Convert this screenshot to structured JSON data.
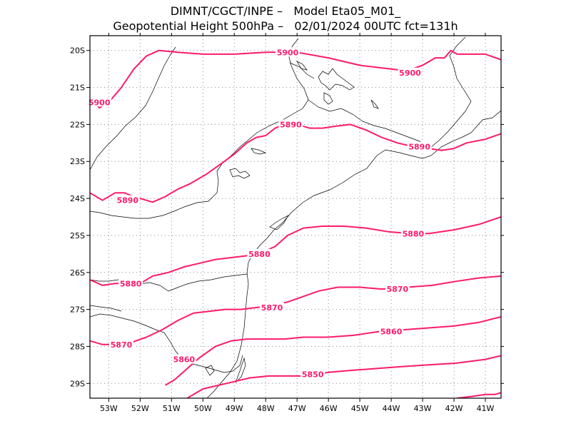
{
  "title_line1": "DIMNT/CGCT/INPE –   Model Eta05_M01_",
  "title_line2": "Geopotential Height 500hPa –   02/01/2024 00UTC fct=131h",
  "colors": {
    "contour": "#ff1a6c",
    "coast": "#000000",
    "grid": "#888888"
  },
  "map": {
    "lon_range": [
      -53.6,
      -40.5
    ],
    "lat_range": [
      -29.4,
      -19.6
    ],
    "lon_ticks": [
      "53W",
      "52W",
      "51W",
      "50W",
      "49W",
      "48W",
      "47W",
      "46W",
      "45W",
      "44W",
      "43W",
      "42W",
      "41W"
    ],
    "lat_ticks": [
      "20S",
      "21S",
      "22S",
      "23S",
      "24S",
      "25S",
      "26S",
      "27S",
      "28S",
      "29S"
    ]
  },
  "contours": [
    {
      "value": "5900",
      "labels": [
        {
          "lon": -47.3,
          "lat": -20.05
        },
        {
          "lon": -43.4,
          "lat": -20.6
        },
        {
          "lon": -53.3,
          "lat": -21.4
        }
      ],
      "points": [
        [
          -53.6,
          -21.3
        ],
        [
          -53.3,
          -21.55
        ],
        [
          -53.0,
          -21.4
        ],
        [
          -52.6,
          -21.0
        ],
        [
          -52.2,
          -20.5
        ],
        [
          -51.8,
          -20.15
        ],
        [
          -51.4,
          -20.0
        ],
        [
          -50.8,
          -20.05
        ],
        [
          -50.0,
          -20.1
        ],
        [
          -49.0,
          -20.1
        ],
        [
          -48.0,
          -20.05
        ],
        [
          -47.0,
          -20.05
        ],
        [
          -46.0,
          -20.2
        ],
        [
          -45.0,
          -20.4
        ],
        [
          -44.0,
          -20.5
        ],
        [
          -43.5,
          -20.55
        ],
        [
          -43.0,
          -20.4
        ],
        [
          -42.6,
          -20.2
        ],
        [
          -42.3,
          -20.2
        ],
        [
          -42.1,
          -20.0
        ],
        [
          -41.9,
          -20.1
        ],
        [
          -41.5,
          -20.1
        ],
        [
          -41.0,
          -20.1
        ],
        [
          -40.5,
          -20.25
        ]
      ]
    },
    {
      "value": "5890",
      "labels": [
        {
          "lon": -52.4,
          "lat": -24.05
        },
        {
          "lon": -47.2,
          "lat": -22.0
        },
        {
          "lon": -43.1,
          "lat": -22.6
        }
      ],
      "points": [
        [
          -53.6,
          -23.85
        ],
        [
          -53.2,
          -24.05
        ],
        [
          -52.8,
          -23.85
        ],
        [
          -52.5,
          -23.85
        ],
        [
          -52.2,
          -23.95
        ],
        [
          -51.6,
          -24.1
        ],
        [
          -51.2,
          -23.95
        ],
        [
          -50.8,
          -23.75
        ],
        [
          -50.4,
          -23.6
        ],
        [
          -49.9,
          -23.35
        ],
        [
          -49.4,
          -23.05
        ],
        [
          -49.0,
          -22.8
        ],
        [
          -48.6,
          -22.5
        ],
        [
          -48.3,
          -22.35
        ],
        [
          -48.0,
          -22.3
        ],
        [
          -47.7,
          -22.1
        ],
        [
          -47.4,
          -22.0
        ],
        [
          -47.0,
          -22.0
        ],
        [
          -46.6,
          -22.1
        ],
        [
          -46.2,
          -22.1
        ],
        [
          -45.8,
          -22.05
        ],
        [
          -45.3,
          -22.0
        ],
        [
          -44.8,
          -22.15
        ],
        [
          -44.3,
          -22.35
        ],
        [
          -43.8,
          -22.5
        ],
        [
          -43.3,
          -22.6
        ],
        [
          -42.8,
          -22.65
        ],
        [
          -42.4,
          -22.7
        ],
        [
          -42.0,
          -22.65
        ],
        [
          -41.6,
          -22.5
        ],
        [
          -41.0,
          -22.4
        ],
        [
          -40.5,
          -22.25
        ]
      ]
    },
    {
      "value": "5880",
      "labels": [
        {
          "lon": -52.3,
          "lat": -26.3
        },
        {
          "lon": -48.2,
          "lat": -25.5
        },
        {
          "lon": -43.3,
          "lat": -24.95
        }
      ],
      "points": [
        [
          -53.6,
          -26.2
        ],
        [
          -53.2,
          -26.35
        ],
        [
          -52.8,
          -26.3
        ],
        [
          -52.4,
          -26.3
        ],
        [
          -52.0,
          -26.3
        ],
        [
          -51.6,
          -26.1
        ],
        [
          -51.1,
          -26.0
        ],
        [
          -50.6,
          -25.85
        ],
        [
          -50.1,
          -25.75
        ],
        [
          -49.6,
          -25.65
        ],
        [
          -49.1,
          -25.6
        ],
        [
          -48.6,
          -25.55
        ],
        [
          -48.1,
          -25.45
        ],
        [
          -47.7,
          -25.3
        ],
        [
          -47.3,
          -25.0
        ],
        [
          -46.8,
          -24.8
        ],
        [
          -46.2,
          -24.75
        ],
        [
          -45.5,
          -24.75
        ],
        [
          -44.8,
          -24.8
        ],
        [
          -44.1,
          -24.9
        ],
        [
          -43.4,
          -24.95
        ],
        [
          -42.8,
          -24.95
        ],
        [
          -42.0,
          -24.85
        ],
        [
          -41.2,
          -24.7
        ],
        [
          -40.5,
          -24.5
        ]
      ]
    },
    {
      "value": "5870",
      "labels": [
        {
          "lon": -52.6,
          "lat": -27.95
        },
        {
          "lon": -47.8,
          "lat": -26.95
        },
        {
          "lon": -43.8,
          "lat": -26.45
        }
      ],
      "points": [
        [
          -53.6,
          -27.85
        ],
        [
          -53.2,
          -27.95
        ],
        [
          -52.8,
          -27.95
        ],
        [
          -52.3,
          -27.9
        ],
        [
          -51.8,
          -27.75
        ],
        [
          -51.3,
          -27.55
        ],
        [
          -50.8,
          -27.3
        ],
        [
          -50.3,
          -27.1
        ],
        [
          -49.8,
          -27.05
        ],
        [
          -49.3,
          -27.0
        ],
        [
          -48.8,
          -27.0
        ],
        [
          -48.3,
          -26.95
        ],
        [
          -47.8,
          -26.9
        ],
        [
          -47.3,
          -26.8
        ],
        [
          -46.8,
          -26.65
        ],
        [
          -46.3,
          -26.5
        ],
        [
          -45.7,
          -26.4
        ],
        [
          -45.0,
          -26.4
        ],
        [
          -44.3,
          -26.45
        ],
        [
          -43.5,
          -26.4
        ],
        [
          -42.7,
          -26.35
        ],
        [
          -42.0,
          -26.25
        ],
        [
          -41.2,
          -26.15
        ],
        [
          -40.5,
          -26.1
        ]
      ]
    },
    {
      "value": "5860",
      "labels": [
        {
          "lon": -50.6,
          "lat": -28.35
        },
        {
          "lon": -44.0,
          "lat": -27.6
        }
      ],
      "points": [
        [
          -51.2,
          -29.05
        ],
        [
          -50.9,
          -28.9
        ],
        [
          -50.5,
          -28.6
        ],
        [
          -50.1,
          -28.3
        ],
        [
          -49.6,
          -28.0
        ],
        [
          -49.1,
          -27.85
        ],
        [
          -48.6,
          -27.8
        ],
        [
          -48.0,
          -27.8
        ],
        [
          -47.4,
          -27.8
        ],
        [
          -46.8,
          -27.75
        ],
        [
          -46.0,
          -27.75
        ],
        [
          -45.2,
          -27.7
        ],
        [
          -44.4,
          -27.6
        ],
        [
          -43.6,
          -27.55
        ],
        [
          -42.8,
          -27.5
        ],
        [
          -42.0,
          -27.45
        ],
        [
          -41.2,
          -27.35
        ],
        [
          -40.5,
          -27.2
        ]
      ]
    },
    {
      "value": "5850",
      "labels": [
        {
          "lon": -46.5,
          "lat": -28.75
        }
      ],
      "points": [
        [
          -50.5,
          -29.4
        ],
        [
          -50.0,
          -29.15
        ],
        [
          -49.5,
          -29.05
        ],
        [
          -49.0,
          -28.95
        ],
        [
          -48.5,
          -28.85
        ],
        [
          -47.9,
          -28.8
        ],
        [
          -47.3,
          -28.8
        ],
        [
          -46.6,
          -28.8
        ],
        [
          -46.0,
          -28.7
        ],
        [
          -45.3,
          -28.65
        ],
        [
          -44.5,
          -28.6
        ],
        [
          -43.7,
          -28.55
        ],
        [
          -42.8,
          -28.5
        ],
        [
          -41.9,
          -28.45
        ],
        [
          -41.0,
          -28.35
        ],
        [
          -40.5,
          -28.25
        ]
      ]
    },
    {
      "value": "",
      "labels": [],
      "points": [
        [
          -41.9,
          -29.4
        ],
        [
          -41.4,
          -29.35
        ],
        [
          -41.0,
          -29.3
        ],
        [
          -40.7,
          -29.3
        ],
        [
          -40.5,
          -29.25
        ]
      ]
    }
  ]
}
